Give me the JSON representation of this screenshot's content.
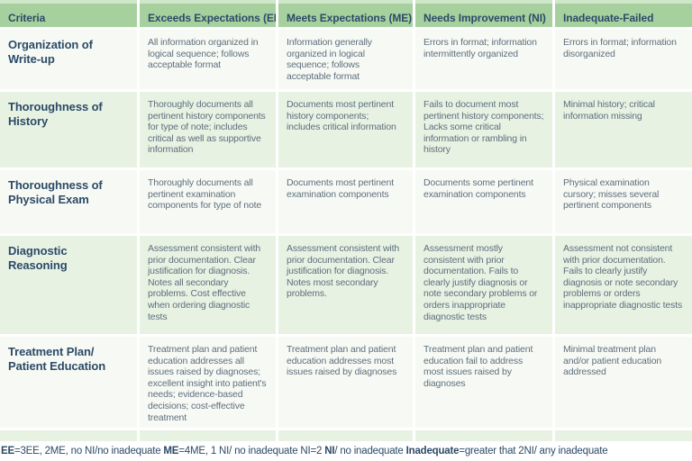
{
  "colors": {
    "header_bg": "#a6d19f",
    "header_top_strip": "#cde7c8",
    "row_light_bg": "#f7faf4",
    "row_green_bg": "#e7f2e3",
    "heading_text": "#2c4a67",
    "body_text": "#5e6e7d"
  },
  "table": {
    "columns": [
      "Criteria",
      "Exceeds Expectations (EE)",
      "Meets Expectations (ME)",
      "Needs Improvement (NI)",
      "Inadequate-Failed"
    ],
    "rows": [
      {
        "criterion": "Organization of Write-up",
        "cells": [
          "All information organized in logical sequence; follows acceptable format",
          "Information generally organized in logical sequence; follows acceptable format",
          "Errors in format; information intermittently organized",
          "Errors in format; information disorganized"
        ]
      },
      {
        "criterion": "Thoroughness of History",
        "cells": [
          "Thoroughly documents all pertinent history components for type of note; includes critical as well as supportive information",
          "Documents most pertinent history components; includes critical information",
          "Fails to document most pertinent history components; Lacks some critical information or rambling in history",
          "Minimal history; critical information missing"
        ]
      },
      {
        "criterion": "Thoroughness of Physical Exam",
        "cells": [
          "Thoroughly documents all pertinent examination components for type of note",
          "Documents most pertinent examination components",
          "Documents some pertinent examination components",
          "Physical examination cursory; misses several pertinent components"
        ]
      },
      {
        "criterion": "Diagnostic Reasoning",
        "cells": [
          "Assessment consistent with prior documentation. Clear justification for diagnosis. Notes all secondary problems. Cost effective when ordering diagnostic tests",
          "Assessment consistent with prior documentation. Clear justification for diagnosis. Notes most secondary problems.",
          "Assessment mostly consistent with prior documentation. Fails to clearly justify diagnosis or note secondary problems or orders inappropriate diagnostic tests",
          "Assessment not consistent with prior documentation. Fails to clearly justify diagnosis or note secondary problems or orders inappropriate diagnostic tests"
        ]
      },
      {
        "criterion": "Treatment Plan/ Patient Education",
        "cells": [
          "Treatment plan and patient education addresses all issues raised by diagnoses; excellent insight into patient's needs; evidence-based decisions; cost-effective treatment",
          "Treatment plan and patient education addresses most issues raised by diagnoses",
          "Treatment plan and patient education fail to address most issues raised by diagnoses",
          "Minimal treatment plan and/or patient education addressed"
        ]
      }
    ]
  },
  "footer": {
    "segments": [
      {
        "bold": "EE",
        "text": "=3EE, 2ME, no NI/no inadequate "
      },
      {
        "bold": "ME",
        "text": "=4ME, 1 NI/ no inadequate NI=2 "
      },
      {
        "bold": "NI",
        "text": "/ no inadequate "
      },
      {
        "bold": "Inadequate",
        "text": "=greater that 2NI/ any inadequate"
      }
    ]
  }
}
